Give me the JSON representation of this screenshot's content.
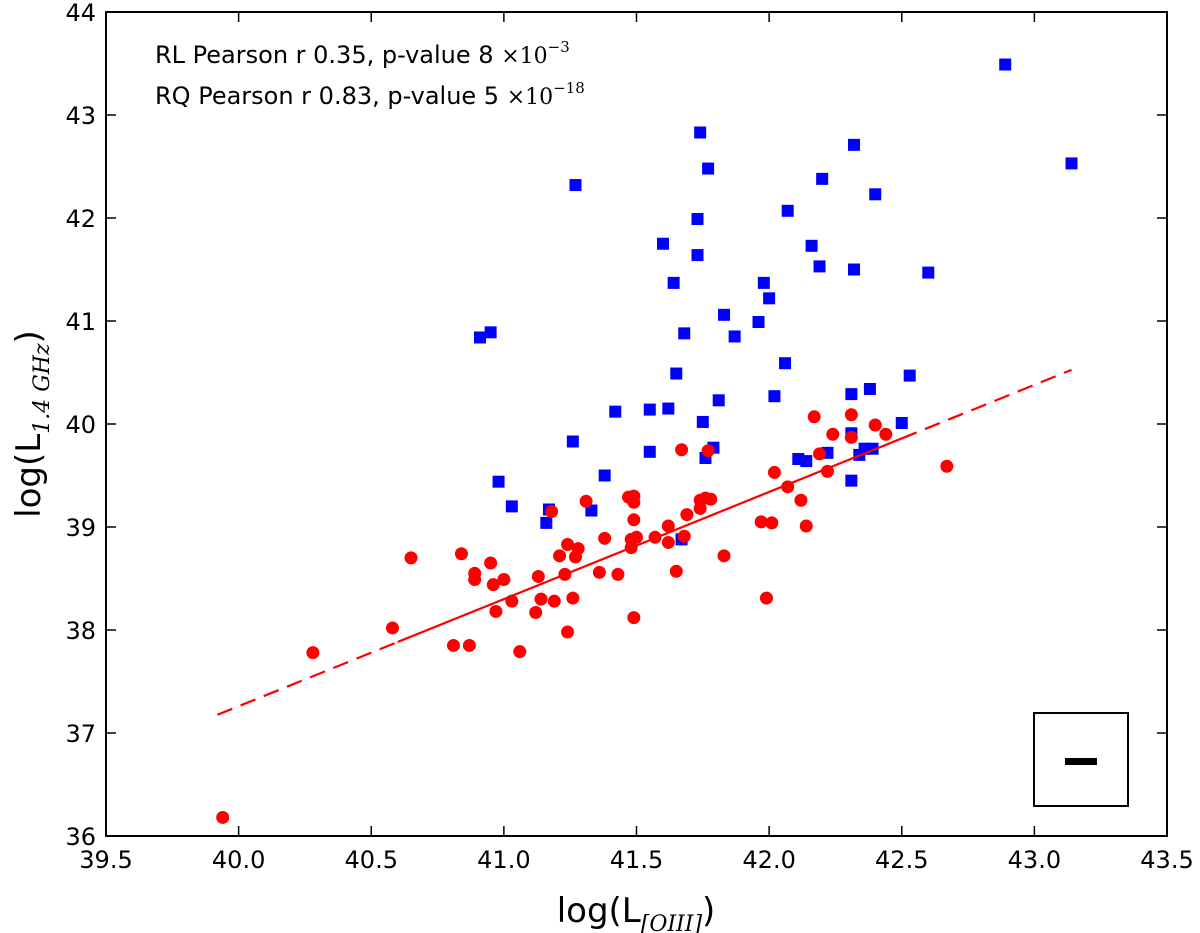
{
  "chart_data": {
    "type": "scatter",
    "xlim": [
      39.5,
      43.5
    ],
    "ylim": [
      36,
      44
    ],
    "xticks": [
      "39.5",
      "40.0",
      "40.5",
      "41.0",
      "41.5",
      "42.0",
      "42.5",
      "43.0",
      "43.5"
    ],
    "yticks": [
      "36",
      "37",
      "38",
      "39",
      "40",
      "41",
      "42",
      "43",
      "44"
    ],
    "xlabel": {
      "base": "log(L",
      "sub": "[OIII]",
      "close": ")"
    },
    "ylabel": {
      "base": "log(L",
      "sub": "1.4  GHz",
      "close": ")"
    },
    "annotations": [
      {
        "text": "RL Pearson r 0.35, p-value 8 ",
        "mult": "×10",
        "exp": "−3"
      },
      {
        "text": "RQ Pearson r 0.83, p-value 5 ",
        "mult": "×10",
        "exp": "−18"
      }
    ],
    "colors": {
      "rl": "#0000ff",
      "rq": "#ff0000",
      "fit": "#ff0000"
    },
    "series": [
      {
        "marker": "square",
        "color": "#0000ff",
        "points": [
          [
            42.89,
            43.49
          ],
          [
            41.74,
            42.83
          ],
          [
            42.32,
            42.71
          ],
          [
            43.14,
            42.53
          ],
          [
            41.77,
            42.48
          ],
          [
            42.2,
            42.38
          ],
          [
            41.27,
            42.32
          ],
          [
            42.4,
            42.23
          ],
          [
            42.07,
            42.07
          ],
          [
            41.73,
            41.99
          ],
          [
            41.6,
            41.75
          ],
          [
            42.16,
            41.73
          ],
          [
            41.73,
            41.64
          ],
          [
            42.19,
            41.53
          ],
          [
            42.32,
            41.5
          ],
          [
            42.6,
            41.47
          ],
          [
            41.98,
            41.37
          ],
          [
            41.64,
            41.37
          ],
          [
            42.0,
            41.22
          ],
          [
            41.83,
            41.06
          ],
          [
            41.96,
            40.99
          ],
          [
            40.95,
            40.89
          ],
          [
            41.68,
            40.88
          ],
          [
            40.91,
            40.84
          ],
          [
            41.87,
            40.85
          ],
          [
            42.06,
            40.59
          ],
          [
            41.65,
            40.49
          ],
          [
            42.53,
            40.47
          ],
          [
            42.38,
            40.34
          ],
          [
            42.31,
            40.29
          ],
          [
            42.02,
            40.27
          ],
          [
            41.81,
            40.23
          ],
          [
            41.55,
            40.14
          ],
          [
            41.62,
            40.15
          ],
          [
            41.42,
            40.12
          ],
          [
            41.75,
            40.02
          ],
          [
            42.5,
            40.01
          ],
          [
            42.31,
            39.91
          ],
          [
            41.26,
            39.83
          ],
          [
            41.79,
            39.77
          ],
          [
            42.39,
            39.76
          ],
          [
            42.36,
            39.76
          ],
          [
            41.55,
            39.73
          ],
          [
            42.22,
            39.72
          ],
          [
            42.34,
            39.7
          ],
          [
            41.76,
            39.67
          ],
          [
            42.11,
            39.66
          ],
          [
            42.14,
            39.64
          ],
          [
            41.38,
            39.5
          ],
          [
            42.31,
            39.45
          ],
          [
            40.98,
            39.44
          ],
          [
            41.03,
            39.2
          ],
          [
            41.17,
            39.17
          ],
          [
            41.33,
            39.16
          ],
          [
            41.16,
            39.04
          ],
          [
            41.67,
            38.88
          ]
        ]
      },
      {
        "marker": "circle",
        "color": "#ff0000",
        "points": [
          [
            39.94,
            36.18
          ],
          [
            40.28,
            37.78
          ],
          [
            40.58,
            38.02
          ],
          [
            40.65,
            38.7
          ],
          [
            40.81,
            37.85
          ],
          [
            40.84,
            38.74
          ],
          [
            40.87,
            37.85
          ],
          [
            40.89,
            38.55
          ],
          [
            40.89,
            38.49
          ],
          [
            40.95,
            38.65
          ],
          [
            40.96,
            38.44
          ],
          [
            40.97,
            38.18
          ],
          [
            41.0,
            38.49
          ],
          [
            41.03,
            38.28
          ],
          [
            41.06,
            37.79
          ],
          [
            41.12,
            38.17
          ],
          [
            41.13,
            38.52
          ],
          [
            41.14,
            38.3
          ],
          [
            41.18,
            39.15
          ],
          [
            41.19,
            38.28
          ],
          [
            41.21,
            38.72
          ],
          [
            41.23,
            38.54
          ],
          [
            41.24,
            38.83
          ],
          [
            41.24,
            37.98
          ],
          [
            41.26,
            38.31
          ],
          [
            41.27,
            38.71
          ],
          [
            41.28,
            38.79
          ],
          [
            41.31,
            39.25
          ],
          [
            41.36,
            38.56
          ],
          [
            41.38,
            38.89
          ],
          [
            41.43,
            38.54
          ],
          [
            41.47,
            39.29
          ],
          [
            41.48,
            38.88
          ],
          [
            41.48,
            38.8
          ],
          [
            41.49,
            39.3
          ],
          [
            41.49,
            39.24
          ],
          [
            41.49,
            39.07
          ],
          [
            41.49,
            38.12
          ],
          [
            41.5,
            38.9
          ],
          [
            41.57,
            38.9
          ],
          [
            41.62,
            39.01
          ],
          [
            41.62,
            38.85
          ],
          [
            41.65,
            38.57
          ],
          [
            41.67,
            39.75
          ],
          [
            41.68,
            38.91
          ],
          [
            41.69,
            39.12
          ],
          [
            41.74,
            39.18
          ],
          [
            41.74,
            39.26
          ],
          [
            41.76,
            39.28
          ],
          [
            41.77,
            39.74
          ],
          [
            41.78,
            39.27
          ],
          [
            41.83,
            38.72
          ],
          [
            41.97,
            39.05
          ],
          [
            41.99,
            38.31
          ],
          [
            42.01,
            39.04
          ],
          [
            42.02,
            39.53
          ],
          [
            42.07,
            39.39
          ],
          [
            42.12,
            39.26
          ],
          [
            42.14,
            39.01
          ],
          [
            42.17,
            40.07
          ],
          [
            42.19,
            39.71
          ],
          [
            42.22,
            39.54
          ],
          [
            42.24,
            39.9
          ],
          [
            42.31,
            40.09
          ],
          [
            42.31,
            39.87
          ],
          [
            42.4,
            39.99
          ],
          [
            42.44,
            39.9
          ],
          [
            42.67,
            39.59
          ]
        ]
      }
    ],
    "fit_line": {
      "slope": 1.04,
      "intercept": -4.34,
      "solid_range": [
        40.6,
        42.5
      ],
      "dashed_range": [
        39.92,
        43.14
      ]
    },
    "legend_box": {
      "symbol": "errorbar"
    }
  }
}
